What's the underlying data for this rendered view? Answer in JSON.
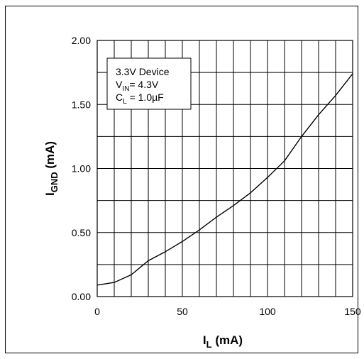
{
  "chart_data": {
    "type": "line",
    "xlabel": {
      "main": "I",
      "sub": "L",
      "unit": " (mA)"
    },
    "ylabel": {
      "main": "I",
      "sub": "GND",
      "unit": " (mA)"
    },
    "xlim": [
      0,
      150
    ],
    "ylim": [
      0,
      2.0
    ],
    "x_ticks": [
      "0",
      "50",
      "100",
      "150"
    ],
    "y_ticks": [
      "0.00",
      "0.50",
      "1.00",
      "1.50",
      "2.00"
    ],
    "grid": true,
    "annotation": {
      "line1": "3.3V Device",
      "line2_main": "V",
      "line2_sub": "IN",
      "line2_rest": "= 4.3V",
      "line3_main": "C",
      "line3_sub": "L",
      "line3_rest": " = 1.0µF"
    },
    "series": [
      {
        "x": [
          0,
          10,
          20,
          30,
          40,
          50,
          60,
          70,
          80,
          90,
          100,
          110,
          120,
          130,
          140,
          150
        ],
        "y": [
          0.09,
          0.11,
          0.17,
          0.28,
          0.35,
          0.43,
          0.52,
          0.62,
          0.71,
          0.81,
          0.93,
          1.06,
          1.25,
          1.42,
          1.57,
          1.74
        ]
      }
    ],
    "colors": {
      "line": "#000000",
      "grid": "#000000"
    }
  }
}
